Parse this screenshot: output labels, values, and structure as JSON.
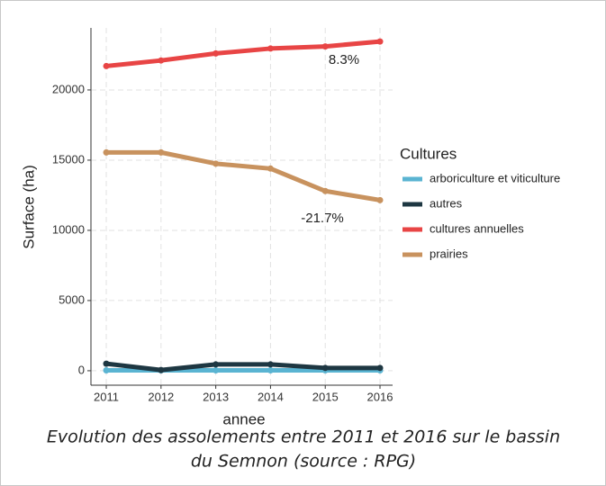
{
  "chart_data": {
    "type": "line",
    "x": [
      2011,
      2012,
      2013,
      2014,
      2015,
      2016
    ],
    "series": [
      {
        "name": "arboriculture et viticulture",
        "color": "#5ab4d2",
        "values": [
          30,
          30,
          30,
          30,
          30,
          30
        ]
      },
      {
        "name": "autres",
        "color": "#1e3742",
        "values": [
          500,
          50,
          450,
          450,
          200,
          200
        ]
      },
      {
        "name": "cultures annuelles",
        "color": "#e84545",
        "values": [
          21700,
          22100,
          22600,
          22950,
          23100,
          23450
        ]
      },
      {
        "name": "prairies",
        "color": "#c8925e",
        "values": [
          15550,
          15550,
          14750,
          14400,
          12800,
          12150
        ]
      }
    ],
    "xlim": [
      2010.72,
      2016.23
    ],
    "xticks": [
      2011,
      2012,
      2013,
      2014,
      2015,
      2016
    ],
    "ylim": [
      -1030,
      24420
    ],
    "yticks": [
      0,
      5000,
      10000,
      15000,
      20000
    ],
    "xlabel": "annee",
    "ylabel": "Surface (ha)",
    "legend_title": "Cultures",
    "annotations": [
      "8.3%",
      "-21.7%"
    ],
    "caption": [
      "Evolution des assolements entre 2011 et 2016 sur le bassin",
      "du Semnon (source : RPG)"
    ],
    "grid": true
  }
}
